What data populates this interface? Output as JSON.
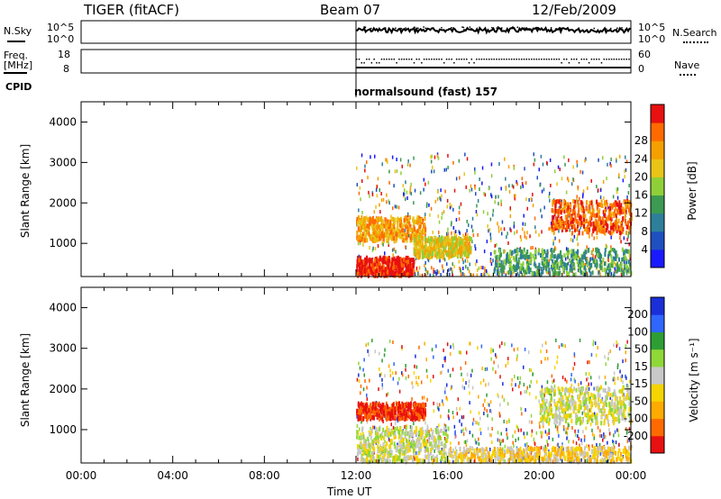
{
  "header": {
    "station": "TIGER (fitACF)",
    "beam": "Beam 07",
    "date": "12/Feb/2009"
  },
  "strip": {
    "nsky_label": "N.Sky",
    "nsky_ticks": [
      "10^5",
      "10^0"
    ],
    "nsearch_label": "N.Search",
    "nsearch_ticks": [
      "10^5",
      "10^0"
    ],
    "freq_label": "Freq.",
    "freq_unit": "[MHz]",
    "freq_ticks": [
      "18",
      "8"
    ],
    "nave_label": "Nave",
    "nave_ticks": [
      "60",
      "0"
    ],
    "cpid_label": "CPID",
    "cpid_text": "normalsound (fast) 157"
  },
  "colors": {
    "accent": "#000000"
  },
  "chart_data": [
    {
      "type": "heatmap",
      "name": "power-panel",
      "ylabel": "Slant Range [km]",
      "xlabel": "",
      "y_ticks": [
        "1000",
        "2000",
        "3000",
        "4000"
      ],
      "ylim": [
        180,
        4500
      ],
      "x_ticks": [
        "00:00",
        "04:00",
        "08:00",
        "12:00",
        "16:00",
        "20:00",
        "00:00"
      ],
      "data_start": "12:00",
      "colorbar_label": "Power [dB]",
      "colorbar_ticks": [
        "4",
        "8",
        "12",
        "16",
        "20",
        "24",
        "28"
      ],
      "colorbar_colors": [
        "#1a1aff",
        "#1f4fc0",
        "#2e7f9a",
        "#3d9a52",
        "#8fd038",
        "#e8c418",
        "#f5a000",
        "#ff6a00",
        "#e81010"
      ],
      "regions": [
        {
          "t0": 12.0,
          "t1": 14.5,
          "r0": 250,
          "r1": 700,
          "level": 8
        },
        {
          "t0": 12.0,
          "t1": 15.0,
          "r0": 1100,
          "r1": 1700,
          "level": 6
        },
        {
          "t0": 14.5,
          "t1": 17.0,
          "r0": 700,
          "r1": 1200,
          "level": 5
        },
        {
          "t0": 20.5,
          "t1": 24.0,
          "r0": 1300,
          "r1": 2100,
          "level": 7
        },
        {
          "t0": 18.0,
          "t1": 24.0,
          "r0": 300,
          "r1": 900,
          "level": 3
        }
      ]
    },
    {
      "type": "heatmap",
      "name": "velocity-panel",
      "ylabel": "Slant Range [km]",
      "xlabel": "Time UT",
      "y_ticks": [
        "1000",
        "2000",
        "3000",
        "4000"
      ],
      "ylim": [
        180,
        4500
      ],
      "x_ticks": [
        "00:00",
        "04:00",
        "08:00",
        "12:00",
        "16:00",
        "20:00",
        "00:00"
      ],
      "data_start": "12:00",
      "colorbar_label": "Velocity [m s⁻¹]",
      "colorbar_ticks": [
        "200",
        "100",
        "50",
        "15",
        "-15",
        "-50",
        "-100",
        "-200"
      ],
      "colorbar_colors": [
        "#1a2fd8",
        "#2f66ff",
        "#2e9e34",
        "#8fd838",
        "#c8c8c8",
        "#f5d400",
        "#ffaa00",
        "#ff6a00",
        "#e81010"
      ],
      "regions": [
        {
          "t0": 12.0,
          "t1": 16.0,
          "r0": 250,
          "r1": 1100,
          "level": 4
        },
        {
          "t0": 12.0,
          "t1": 15.0,
          "r0": 1300,
          "r1": 1700,
          "level": 8
        },
        {
          "t0": 20.0,
          "t1": 24.0,
          "r0": 1200,
          "r1": 2100,
          "level": 4
        },
        {
          "t0": 16.0,
          "t1": 24.0,
          "r0": 250,
          "r1": 600,
          "level": 5
        }
      ]
    }
  ]
}
